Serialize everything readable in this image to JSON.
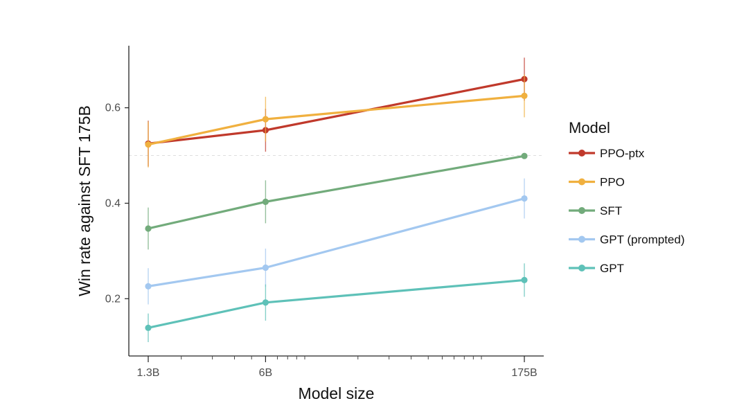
{
  "chart_data": {
    "type": "line",
    "title": "",
    "xlabel": "Model size",
    "ylabel": "Win rate against SFT 175B",
    "x_scale": "log",
    "categories": [
      "1.3B",
      "6B",
      "175B"
    ],
    "x_values_billions": [
      1.3,
      6,
      175
    ],
    "ylim": [
      0.08,
      0.73
    ],
    "y_ticks": [
      "0.2",
      "0.4",
      "0.6"
    ],
    "reference_line": 0.5,
    "grid": false,
    "legend": {
      "title": "Model",
      "position": "right"
    },
    "series": [
      {
        "name": "PPO-ptx",
        "color": "#c0392b",
        "values": [
          0.525,
          0.553,
          0.66
        ],
        "error": [
          0.048,
          0.045,
          0.045
        ]
      },
      {
        "name": "PPO",
        "color": "#f0b03f",
        "values": [
          0.523,
          0.576,
          0.625
        ],
        "error": [
          0.048,
          0.047,
          0.045
        ]
      },
      {
        "name": "SFT",
        "color": "#72ab7b",
        "values": [
          0.347,
          0.403,
          0.499
        ],
        "error": [
          0.044,
          0.045,
          0.0
        ]
      },
      {
        "name": "GPT (prompted)",
        "color": "#a3c8f0",
        "values": [
          0.226,
          0.265,
          0.41
        ],
        "error": [
          0.038,
          0.04,
          0.042
        ]
      },
      {
        "name": "GPT",
        "color": "#5ec1b8",
        "values": [
          0.139,
          0.192,
          0.239
        ],
        "error": [
          0.03,
          0.038,
          0.035
        ]
      }
    ]
  }
}
